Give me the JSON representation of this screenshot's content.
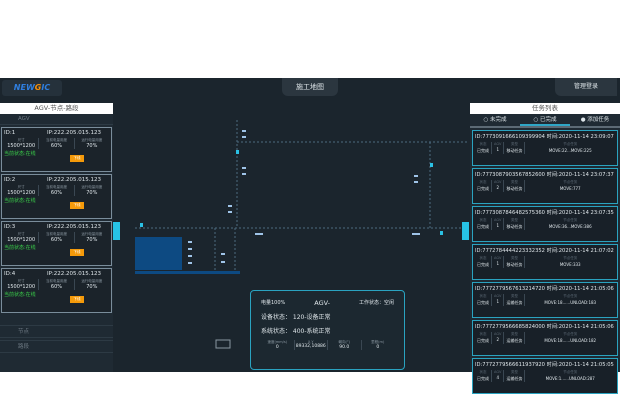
{
  "header": {
    "logo": "NEWGIC",
    "map_title": "施工地图",
    "login": "管理登录"
  },
  "left": {
    "title": "AGV-节点-路段",
    "agv_label": "AGV",
    "node_label": "节点",
    "segment_label": "路段",
    "cards": [
      {
        "id": "ID:1",
        "ip": "IP:222.205.015.123",
        "size_k": "尺寸",
        "size": "1500*1200",
        "l_k": "当前电量用度",
        "l": "60%",
        "r_k": "运行电量用度",
        "r": "70%",
        "status": "当前状态:在线",
        "btn": "下线"
      },
      {
        "id": "ID:2",
        "ip": "IP:222.205.015.123",
        "size_k": "尺寸",
        "size": "1500*1200",
        "l_k": "当前电量用度",
        "l": "60%",
        "r_k": "运行电量用度",
        "r": "70%",
        "status": "当前状态:在线",
        "btn": "下线"
      },
      {
        "id": "ID:3",
        "ip": "IP:222.205.015.123",
        "size_k": "尺寸",
        "size": "1500*1200",
        "l_k": "当前电量用度",
        "l": "60%",
        "r_k": "运行电量用度",
        "r": "70%",
        "status": "当前状态:在线",
        "btn": "下线"
      },
      {
        "id": "ID:4",
        "ip": "IP:222.205.015.123",
        "size_k": "尺寸",
        "size": "1500*1200",
        "l_k": "当前电量用度",
        "l": "60%",
        "r_k": "运行电量用度",
        "r": "70%",
        "status": "当前状态:在线",
        "btn": "下线"
      }
    ]
  },
  "right": {
    "title": "任务列表",
    "tabs": [
      "未完成",
      "已完成",
      "添加任务"
    ],
    "col_keys": [
      "状态",
      "AGV",
      "类型",
      "节点任务"
    ],
    "tasks": [
      {
        "head": "ID:7773091666109399904 时间:2020-11-14 23:09:07",
        "status": "已完成",
        "agv": "1",
        "type": "移动任务",
        "nodes": "MOVE:22...MOVE:225"
      },
      {
        "head": "ID:7773087903567852600 时间:2020-11-14 23:07:37",
        "status": "已完成",
        "agv": "2",
        "type": "移动任务",
        "nodes": "MOVE:777"
      },
      {
        "head": "ID:7773087846482575360 时间:2020-11-14 23:07:35",
        "status": "已完成",
        "agv": "1",
        "type": "移动任务",
        "nodes": "MOVE:36...MOVE:386"
      },
      {
        "head": "ID:7772784444223332352 时间:2020-11-14 21:07:02",
        "status": "已完成",
        "agv": "1",
        "type": "移动任务",
        "nodes": "MOVE:333"
      },
      {
        "head": "ID:7772779567613214720 时间:2020-11-14 21:05:06",
        "status": "已完成",
        "agv": "1",
        "type": "运输任务",
        "nodes": "MOVE:18......UNLOAD:183"
      },
      {
        "head": "ID:7772779566685824000 时间:2020-11-14 21:05:06",
        "status": "已完成",
        "agv": "2",
        "type": "运输任务",
        "nodes": "MOVE:18......UNLOAD:182"
      },
      {
        "head": "ID:7772779566611937920 时间:2020-11-14 21:05:05",
        "status": "已完成",
        "agv": "4",
        "type": "运输任务",
        "nodes": "MOVE:1......UNLOAD:287"
      }
    ]
  },
  "info": {
    "battery": "电量100%",
    "name": "AGV-",
    "work": "工作状态：空闲",
    "device": "设备状态：  120-设备正常",
    "system": "系统状态：  400-系统正常",
    "fields": [
      {
        "k": "速度(mm/s)",
        "v": "0"
      },
      {
        "k": "X,Y",
        "v": "89332,10886"
      },
      {
        "k": "朝向(°)",
        "v": "90.0"
      },
      {
        "k": "里程(m)",
        "v": "0"
      }
    ]
  },
  "colors": {
    "bg": "#1b252d",
    "accent": "#2aa3c0",
    "online": "#3ad14a",
    "button": "#f59a0a"
  }
}
